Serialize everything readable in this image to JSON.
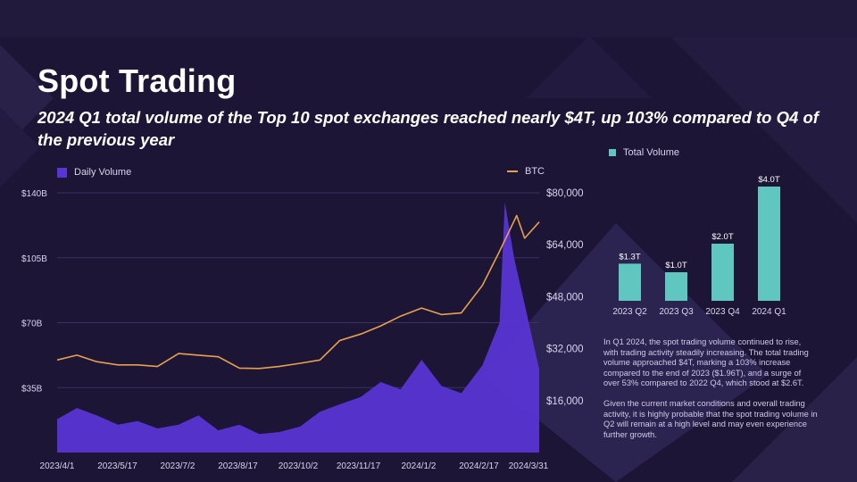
{
  "header": {
    "title": "Spot Trading",
    "subtitle": "2024 Q1 total volume of the Top 10 spot exchanges reached nearly $4T, up 103% compared to Q4 of the previous year"
  },
  "colors": {
    "background": "#1c1535",
    "volume": "#5a35d6",
    "btc": "#e7a04e",
    "total_volume": "#5fc7c0"
  },
  "chart_data": [
    {
      "type": "area",
      "legend": [
        "Daily Volume",
        "BTC"
      ],
      "legend_placement": "top",
      "x_ticks": [
        "2023/4/1",
        "2023/5/17",
        "2023/7/2",
        "2023/8/17",
        "2023/10/2",
        "2023/11/17",
        "2024/1/2",
        "2024/2/17",
        "2024/3/31"
      ],
      "y_ticks_left": [
        "$35B",
        "$70B",
        "$105B",
        "$140B"
      ],
      "y_ticks_right": [
        "$16,000",
        "$32,000",
        "$48,000",
        "$64,000",
        "$80,000"
      ],
      "ylim_left": [
        0,
        140
      ],
      "ylim_right": [
        0,
        80000
      ],
      "grid": true,
      "series": [
        {
          "name": "Daily Volume",
          "axis": "left",
          "unit": "$B",
          "x": [
            "2023/4/1",
            "2023/4/16",
            "2023/5/1",
            "2023/5/17",
            "2023/6/1",
            "2023/6/16",
            "2023/7/2",
            "2023/7/17",
            "2023/8/1",
            "2023/8/17",
            "2023/9/1",
            "2023/9/16",
            "2023/10/2",
            "2023/10/17",
            "2023/11/1",
            "2023/11/17",
            "2023/12/2",
            "2023/12/17",
            "2024/1/2",
            "2024/1/17",
            "2024/2/1",
            "2024/2/17",
            "2024/3/1",
            "2024/3/5",
            "2024/3/12",
            "2024/3/20",
            "2024/3/31"
          ],
          "values": [
            18,
            24,
            20,
            15,
            17,
            13,
            15,
            20,
            12,
            15,
            10,
            11,
            14,
            22,
            26,
            30,
            38,
            34,
            50,
            36,
            32,
            47,
            70,
            135,
            105,
            80,
            45
          ]
        },
        {
          "name": "BTC",
          "axis": "right",
          "unit": "USD",
          "x": [
            "2023/4/1",
            "2023/4/16",
            "2023/5/1",
            "2023/5/17",
            "2023/6/1",
            "2023/6/16",
            "2023/7/2",
            "2023/7/17",
            "2023/8/1",
            "2023/8/17",
            "2023/9/1",
            "2023/9/16",
            "2023/10/2",
            "2023/10/17",
            "2023/11/1",
            "2023/11/17",
            "2023/12/2",
            "2023/12/17",
            "2024/1/2",
            "2024/1/17",
            "2024/2/1",
            "2024/2/17",
            "2024/3/1",
            "2024/3/14",
            "2024/3/20",
            "2024/3/31"
          ],
          "values": [
            28500,
            30000,
            28000,
            27000,
            27000,
            26500,
            30500,
            30000,
            29500,
            26000,
            25900,
            26500,
            27500,
            28500,
            34500,
            36500,
            39000,
            42000,
            44500,
            42500,
            43000,
            51500,
            62000,
            73000,
            66000,
            71000
          ]
        }
      ]
    },
    {
      "type": "bar",
      "legend": [
        "Total Volume"
      ],
      "categories": [
        "2023 Q2",
        "2023 Q3",
        "2023 Q4",
        "2024 Q1"
      ],
      "values": [
        1.3,
        1.0,
        2.0,
        4.0
      ],
      "labels": [
        "$1.3T",
        "$1.0T",
        "$2.0T",
        "$4.0T"
      ],
      "unit": "$T"
    }
  ],
  "commentary": [
    "In Q1 2024, the spot trading volume continued to rise, with trading activity steadily increasing. The total trading volume approached $4T, marking a 103% increase compared to the end of 2023 ($1.96T), and a surge of over 53% compared to 2022 Q4, which stood at $2.6T.",
    "Given the current market conditions and overall trading activity, it is highly probable that the spot trading volume in Q2 will remain at a high level and may even experience further growth."
  ]
}
